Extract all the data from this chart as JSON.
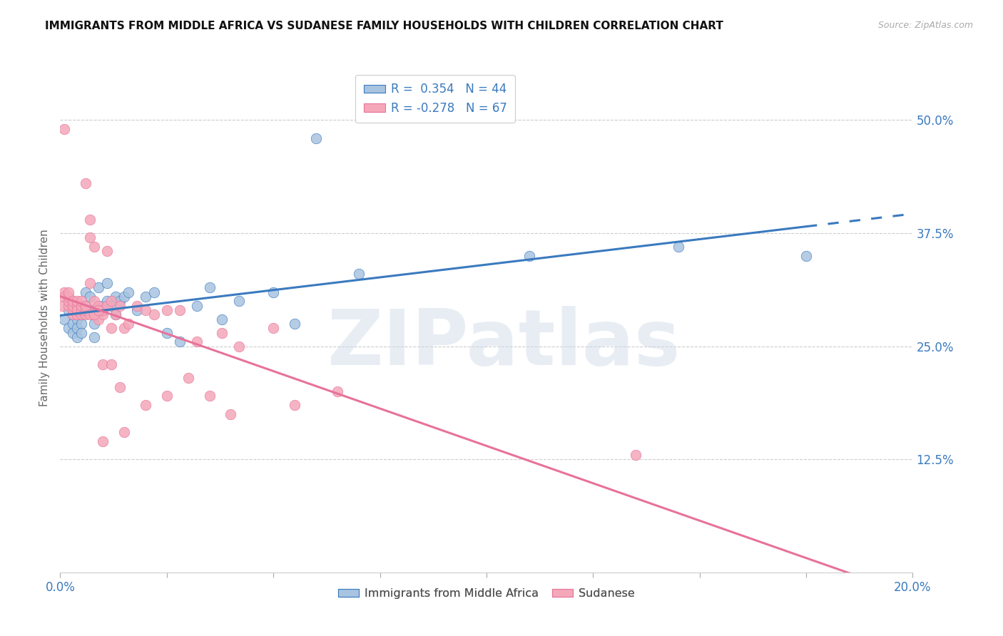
{
  "title": "IMMIGRANTS FROM MIDDLE AFRICA VS SUDANESE FAMILY HOUSEHOLDS WITH CHILDREN CORRELATION CHART",
  "source": "Source: ZipAtlas.com",
  "ylabel": "Family Households with Children",
  "xmin": 0.0,
  "xmax": 0.2,
  "ymin": 0.0,
  "ymax": 0.5625,
  "yticks": [
    0.125,
    0.25,
    0.375,
    0.5
  ],
  "ytick_labels": [
    "12.5%",
    "25.0%",
    "37.5%",
    "50.0%"
  ],
  "xticks": [
    0.0,
    0.025,
    0.05,
    0.075,
    0.1,
    0.125,
    0.15,
    0.175,
    0.2
  ],
  "xtick_labels": [
    "0.0%",
    "",
    "",
    "",
    "",
    "",
    "",
    "",
    "20.0%"
  ],
  "blue_r": 0.354,
  "blue_n": 44,
  "pink_r": -0.278,
  "pink_n": 67,
  "blue_color": "#a8c4e0",
  "pink_color": "#f4a7b9",
  "blue_line_color": "#3a7abf",
  "pink_line_color": "#e87299",
  "legend_blue_label": "Immigrants from Middle Africa",
  "legend_pink_label": "Sudanese",
  "watermark": "ZIPatlas",
  "blue_points_x": [
    0.001,
    0.002,
    0.002,
    0.003,
    0.003,
    0.003,
    0.004,
    0.004,
    0.004,
    0.005,
    0.005,
    0.005,
    0.006,
    0.006,
    0.007,
    0.007,
    0.008,
    0.008,
    0.009,
    0.01,
    0.011,
    0.011,
    0.012,
    0.013,
    0.013,
    0.014,
    0.015,
    0.016,
    0.018,
    0.02,
    0.022,
    0.025,
    0.028,
    0.032,
    0.035,
    0.038,
    0.042,
    0.05,
    0.055,
    0.06,
    0.07,
    0.11,
    0.145,
    0.175
  ],
  "blue_points_y": [
    0.28,
    0.27,
    0.29,
    0.275,
    0.265,
    0.285,
    0.26,
    0.28,
    0.27,
    0.275,
    0.265,
    0.285,
    0.31,
    0.295,
    0.29,
    0.305,
    0.275,
    0.26,
    0.315,
    0.295,
    0.3,
    0.32,
    0.295,
    0.285,
    0.305,
    0.3,
    0.305,
    0.31,
    0.29,
    0.305,
    0.31,
    0.265,
    0.255,
    0.295,
    0.315,
    0.28,
    0.3,
    0.31,
    0.275,
    0.48,
    0.33,
    0.35,
    0.36,
    0.35
  ],
  "pink_points_x": [
    0.0005,
    0.001,
    0.001,
    0.001,
    0.002,
    0.002,
    0.002,
    0.002,
    0.003,
    0.003,
    0.003,
    0.003,
    0.004,
    0.004,
    0.004,
    0.004,
    0.005,
    0.005,
    0.005,
    0.005,
    0.006,
    0.006,
    0.006,
    0.007,
    0.007,
    0.007,
    0.008,
    0.008,
    0.008,
    0.009,
    0.009,
    0.01,
    0.01,
    0.011,
    0.011,
    0.012,
    0.012,
    0.013,
    0.014,
    0.015,
    0.016,
    0.018,
    0.02,
    0.022,
    0.025,
    0.028,
    0.032,
    0.038,
    0.042,
    0.05,
    0.006,
    0.007,
    0.008,
    0.009,
    0.01,
    0.012,
    0.014,
    0.02,
    0.025,
    0.03,
    0.035,
    0.04,
    0.055,
    0.065,
    0.01,
    0.015,
    0.135
  ],
  "pink_points_y": [
    0.295,
    0.49,
    0.31,
    0.305,
    0.295,
    0.3,
    0.305,
    0.31,
    0.285,
    0.29,
    0.295,
    0.3,
    0.285,
    0.295,
    0.29,
    0.3,
    0.285,
    0.29,
    0.295,
    0.3,
    0.285,
    0.29,
    0.295,
    0.285,
    0.39,
    0.37,
    0.285,
    0.36,
    0.3,
    0.28,
    0.295,
    0.285,
    0.29,
    0.355,
    0.295,
    0.27,
    0.3,
    0.285,
    0.295,
    0.27,
    0.275,
    0.295,
    0.29,
    0.285,
    0.29,
    0.29,
    0.255,
    0.265,
    0.25,
    0.27,
    0.43,
    0.32,
    0.285,
    0.29,
    0.23,
    0.23,
    0.205,
    0.185,
    0.195,
    0.215,
    0.195,
    0.175,
    0.185,
    0.2,
    0.145,
    0.155,
    0.13
  ]
}
